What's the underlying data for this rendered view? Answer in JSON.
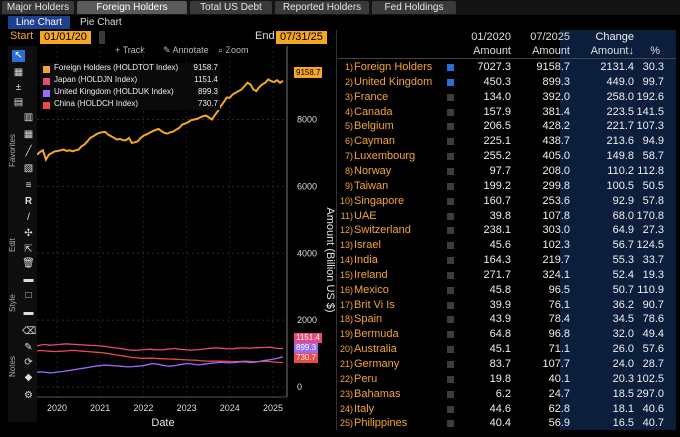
{
  "top_tabs": [
    "Major Holders",
    "Foreign Holders",
    "Total US Debt",
    "Reported Holders",
    "Fed Holdings"
  ],
  "sub_tabs": [
    "Line Chart",
    "Pie Chart"
  ],
  "date_range": {
    "start_label": "Start",
    "start": "01/01/20",
    "end_label": "End",
    "end": "07/31/25"
  },
  "chart_tools": {
    "track": "Track",
    "annotate": "Annotate",
    "zoom": "Zoom"
  },
  "toolbar_labels": {
    "favorites": "Favorites",
    "edit": "Edit",
    "style": "Style",
    "notes": "Notes"
  },
  "colors": {
    "accent": "#f5a623",
    "foreign": "#f5a623",
    "japan": "#e8467c",
    "uk": "#9b6bff",
    "china": "#ef4a4a",
    "tab_active": "#1f3f8f",
    "check_on": "#2a6fd6"
  },
  "chart_data": {
    "type": "line",
    "ylabel": "Amount (Billion US $)",
    "xlabel": "Date",
    "ylim": [
      -300,
      10200
    ],
    "y_ticks": [
      0,
      2000,
      4000,
      6000,
      8000
    ],
    "x_ticks": [
      "2020",
      "2021",
      "2022",
      "2023",
      "2024",
      "2025"
    ],
    "legend": [
      {
        "label": "Foreign Holders (HOLDTOT Index)",
        "value": "9158.7"
      },
      {
        "label": "Japan (HOLDJN Index)",
        "value": "1151.4"
      },
      {
        "label": "United Kingdom (HOLDUK Index)",
        "value": "899.3"
      },
      {
        "label": "China (HOLDCH Index)",
        "value": "730.7"
      }
    ],
    "series": [
      {
        "name": "Foreign Holders",
        "color": "#f5a623",
        "values": [
          6950,
          7030,
          7080,
          6800,
          6950,
          7000,
          7050,
          7060,
          7080,
          7100,
          7060,
          7080,
          7050,
          7080,
          7100,
          7200,
          7250,
          7350,
          7450,
          7500,
          7560,
          7600,
          7620,
          7630,
          7550,
          7500,
          7450,
          7400,
          7420,
          7380,
          7380,
          7450,
          7300,
          7320,
          7350,
          7450,
          7520,
          7560,
          7600,
          7650,
          7690,
          7720,
          7650,
          7600,
          7580,
          7620,
          7640,
          7700,
          7750,
          7850,
          7880,
          7920,
          7980,
          8000,
          8020,
          8060,
          8100,
          8120,
          8060,
          8000,
          8130,
          8250,
          8400,
          8520,
          8660,
          8650,
          8750,
          8800,
          8850,
          8900,
          9000,
          9100,
          9050,
          8900,
          8850,
          8970,
          9050,
          9100,
          9200,
          9150,
          9120,
          9180,
          9100,
          9158.7
        ]
      },
      {
        "name": "Japan",
        "color": "#e8467c",
        "values": [
          1230,
          1260,
          1270,
          1250,
          1260,
          1270,
          1280,
          1290,
          1280,
          1275,
          1265,
          1260,
          1250,
          1245,
          1240,
          1230,
          1220,
          1200,
          1180,
          1170,
          1150,
          1130,
          1110,
          1100,
          1100,
          1110,
          1120,
          1130,
          1115,
          1110,
          1110,
          1130,
          1140,
          1150,
          1130,
          1120,
          1110,
          1100,
          1110,
          1120,
          1135,
          1150,
          1160,
          1170,
          1160,
          1150,
          1140,
          1145,
          1160,
          1170,
          1165,
          1160,
          1170,
          1175,
          1180,
          1185,
          1190,
          1165,
          1150,
          1151.4
        ]
      },
      {
        "name": "United Kingdom",
        "color": "#9b6bff",
        "values": [
          440,
          450,
          440,
          420,
          430,
          450,
          460,
          480,
          500,
          520,
          540,
          560,
          580,
          600,
          620,
          640,
          650,
          650,
          640,
          630,
          620,
          610,
          600,
          610,
          620,
          630,
          650,
          680,
          700,
          680,
          650,
          630,
          620,
          640,
          660,
          680,
          700,
          690,
          670,
          660,
          680,
          700,
          710,
          720,
          740,
          730,
          720,
          730,
          740,
          750,
          750,
          730,
          740,
          760,
          780,
          800,
          820,
          840,
          870,
          899.3
        ]
      },
      {
        "name": "China",
        "color": "#ef4a4a",
        "values": [
          1080,
          1090,
          1080,
          1070,
          1060,
          1065,
          1070,
          1080,
          1090,
          1095,
          1080,
          1070,
          1060,
          1050,
          1040,
          1030,
          1020,
          1000,
          980,
          960,
          940,
          920,
          900,
          880,
          870,
          860,
          855,
          860,
          860,
          850,
          845,
          840,
          835,
          830,
          825,
          815,
          810,
          805,
          800,
          790,
          780,
          775,
          770,
          770,
          770,
          768,
          765,
          760,
          760,
          765,
          770,
          765,
          760,
          760,
          765,
          770,
          760,
          745,
          735,
          730.7
        ]
      }
    ]
  },
  "table": {
    "headers": {
      "col1": "01/2020",
      "col2": "07/2025",
      "col3": "Change",
      "amount": "Amount",
      "amount_down": "Amount↓",
      "pct": "%"
    },
    "rows": [
      {
        "num": "1)",
        "name": "Foreign Holders",
        "checked": true,
        "a": "7027.3",
        "b": "9158.7",
        "c": "2131.4",
        "d": "30.3"
      },
      {
        "num": "2)",
        "name": "United Kingdom",
        "checked": true,
        "a": "450.3",
        "b": "899.3",
        "c": "449.0",
        "d": "99.7"
      },
      {
        "num": "3)",
        "name": "France",
        "checked": false,
        "a": "134.0",
        "b": "392.0",
        "c": "258.0",
        "d": "192.6"
      },
      {
        "num": "4)",
        "name": "Canada",
        "checked": false,
        "a": "157.9",
        "b": "381.4",
        "c": "223.5",
        "d": "141.5"
      },
      {
        "num": "5)",
        "name": "Belgium",
        "checked": false,
        "a": "206.5",
        "b": "428.2",
        "c": "221.7",
        "d": "107.3"
      },
      {
        "num": "6)",
        "name": "Cayman",
        "checked": false,
        "a": "225.1",
        "b": "438.7",
        "c": "213.6",
        "d": "94.9"
      },
      {
        "num": "7)",
        "name": "Luxembourg",
        "checked": false,
        "a": "255.2",
        "b": "405.0",
        "c": "149.8",
        "d": "58.7"
      },
      {
        "num": "8)",
        "name": "Norway",
        "checked": false,
        "a": "97.7",
        "b": "208.0",
        "c": "110.2",
        "d": "112.8"
      },
      {
        "num": "9)",
        "name": "Taiwan",
        "checked": false,
        "a": "199.2",
        "b": "299.8",
        "c": "100.5",
        "d": "50.5"
      },
      {
        "num": "10)",
        "name": "Singapore",
        "checked": false,
        "a": "160.7",
        "b": "253.6",
        "c": "92.9",
        "d": "57.8"
      },
      {
        "num": "11)",
        "name": "UAE",
        "checked": false,
        "a": "39.8",
        "b": "107.8",
        "c": "68.0",
        "d": "170.8"
      },
      {
        "num": "12)",
        "name": "Switzerland",
        "checked": false,
        "a": "238.1",
        "b": "303.0",
        "c": "64.9",
        "d": "27.3"
      },
      {
        "num": "13)",
        "name": "Israel",
        "checked": false,
        "a": "45.6",
        "b": "102.3",
        "c": "56.7",
        "d": "124.5"
      },
      {
        "num": "14)",
        "name": "India",
        "checked": false,
        "a": "164.3",
        "b": "219.7",
        "c": "55.3",
        "d": "33.7"
      },
      {
        "num": "15)",
        "name": "Ireland",
        "checked": false,
        "a": "271.7",
        "b": "324.1",
        "c": "52.4",
        "d": "19.3"
      },
      {
        "num": "16)",
        "name": "Mexico",
        "checked": false,
        "a": "45.8",
        "b": "96.5",
        "c": "50.7",
        "d": "110.9"
      },
      {
        "num": "17)",
        "name": "Brit Vi Is",
        "checked": false,
        "a": "39.9",
        "b": "76.1",
        "c": "36.2",
        "d": "90.7"
      },
      {
        "num": "18)",
        "name": "Spain",
        "checked": false,
        "a": "43.9",
        "b": "78.4",
        "c": "34.5",
        "d": "78.6"
      },
      {
        "num": "19)",
        "name": "Bermuda",
        "checked": false,
        "a": "64.8",
        "b": "96.8",
        "c": "32.0",
        "d": "49.4"
      },
      {
        "num": "20)",
        "name": "Australia",
        "checked": false,
        "a": "45.1",
        "b": "71.1",
        "c": "26.0",
        "d": "57.6"
      },
      {
        "num": "21)",
        "name": "Germany",
        "checked": false,
        "a": "83.7",
        "b": "107.7",
        "c": "24.0",
        "d": "28.7"
      },
      {
        "num": "22)",
        "name": "Peru",
        "checked": false,
        "a": "19.8",
        "b": "40.1",
        "c": "20.3",
        "d": "102.5"
      },
      {
        "num": "23)",
        "name": "Bahamas",
        "checked": false,
        "a": "6.2",
        "b": "24.7",
        "c": "18.5",
        "d": "297.0"
      },
      {
        "num": "24)",
        "name": "Italy",
        "checked": false,
        "a": "44.6",
        "b": "62.8",
        "c": "18.1",
        "d": "40.6"
      },
      {
        "num": "25)",
        "name": "Philippines",
        "checked": false,
        "a": "40.4",
        "b": "56.9",
        "c": "16.5",
        "d": "40.7"
      }
    ]
  }
}
